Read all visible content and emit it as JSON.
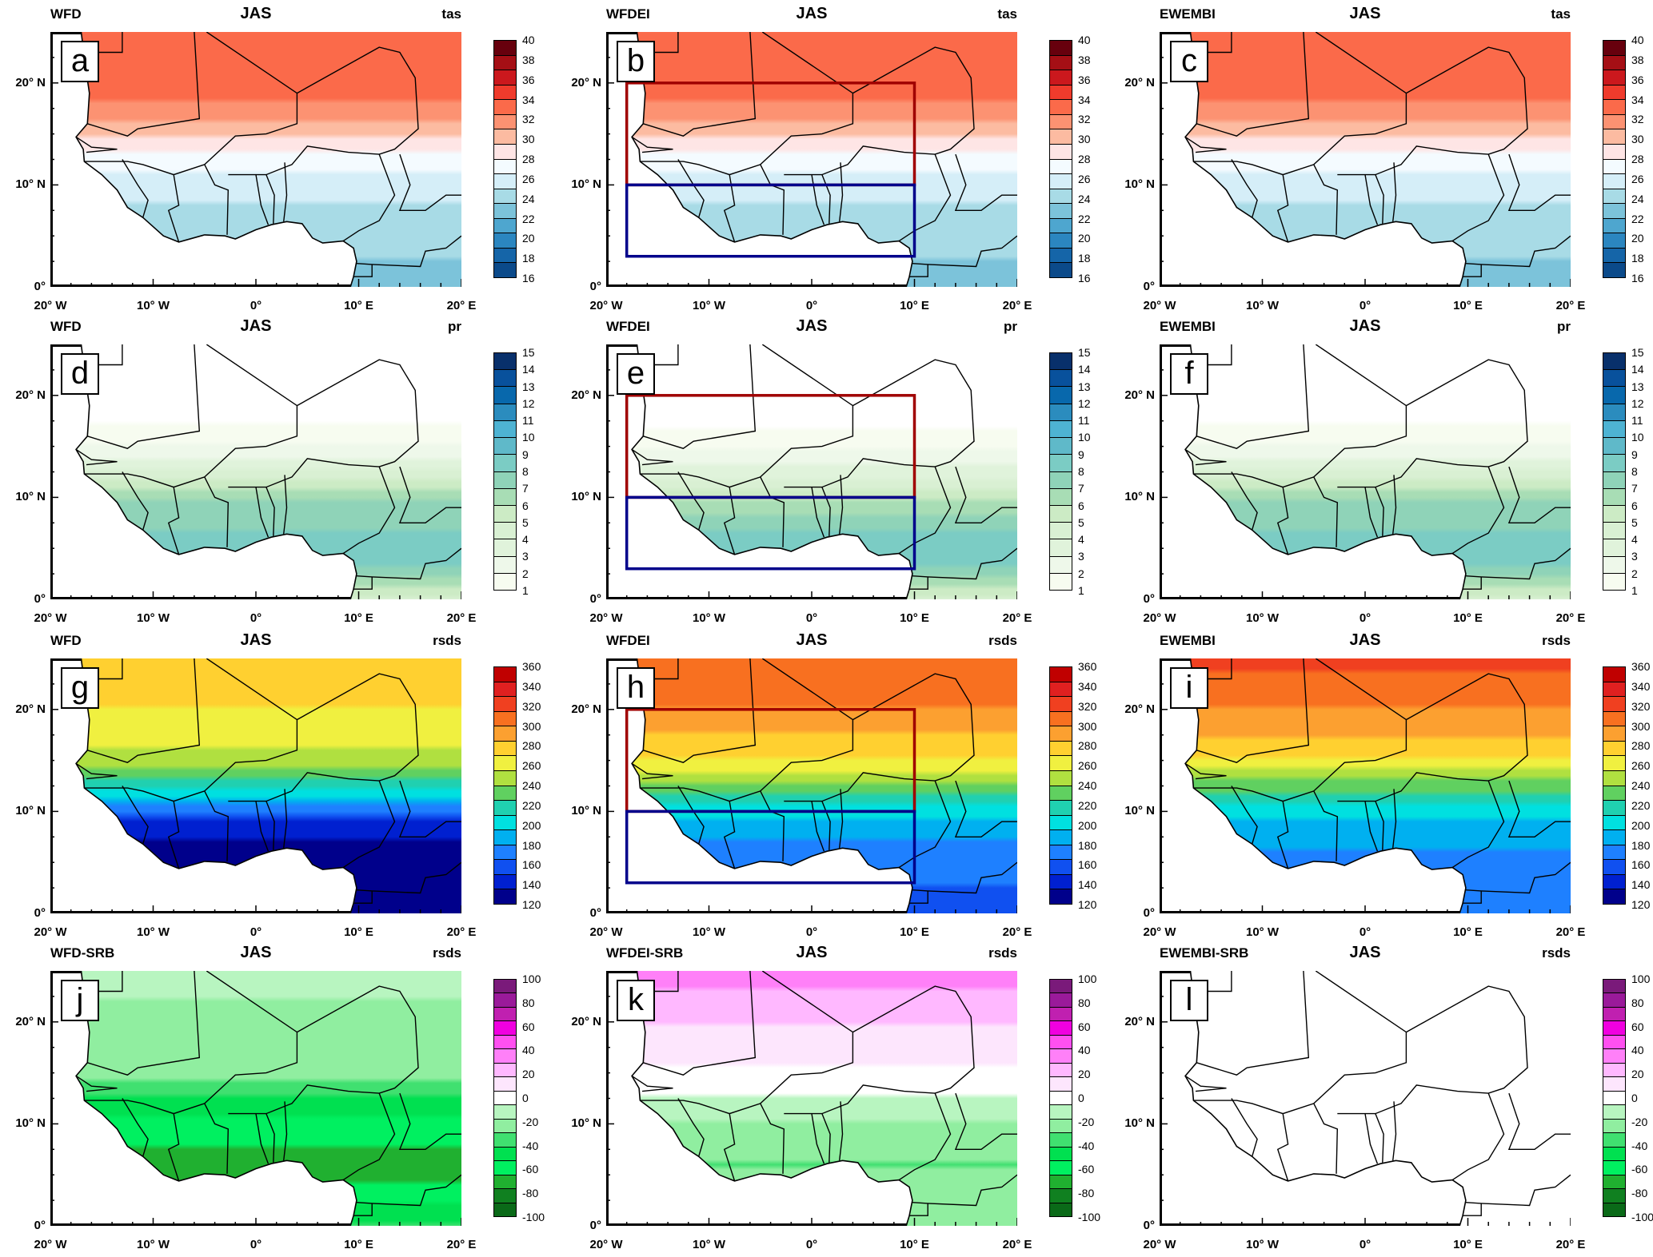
{
  "axes": {
    "lat_ticks": [
      {
        "value": 0,
        "label": "0°"
      },
      {
        "value": 10,
        "label": "10° N"
      },
      {
        "value": 20,
        "label": "20° N"
      }
    ],
    "lon_ticks": [
      {
        "value": -20,
        "label": "20° W"
      },
      {
        "value": -10,
        "label": "10° W"
      },
      {
        "value": 0,
        "label": "0°"
      },
      {
        "value": 10,
        "label": "10° E"
      },
      {
        "value": 20,
        "label": "20° E"
      }
    ],
    "lon_range": [
      -20,
      20
    ],
    "lat_range": [
      0,
      25
    ]
  },
  "colorbars": {
    "tas": {
      "labels": [
        "40",
        "38",
        "36",
        "34",
        "32",
        "30",
        "28",
        "26",
        "24",
        "22",
        "20",
        "18",
        "16"
      ],
      "colors": [
        "#67000d",
        "#a50f15",
        "#cb181d",
        "#ef3b2c",
        "#fb6a4a",
        "#fc9272",
        "#fcbba1",
        "#fee5e5",
        "#f4fbff",
        "#d5eef8",
        "#a8dbe6",
        "#7cc3da",
        "#4ea6cf",
        "#2b86c0",
        "#1565a8",
        "#0b4a8a"
      ]
    },
    "pr": {
      "labels": [
        "15",
        "14",
        "13",
        "12",
        "11",
        "10",
        "9",
        "8",
        "7",
        "6",
        "5",
        "4",
        "3",
        "2",
        "1"
      ],
      "colors": [
        "#08306b",
        "#08519c",
        "#0868ac",
        "#2b8cbe",
        "#4eb3d3",
        "#5fb9c9",
        "#7bccc4",
        "#8fd3b8",
        "#a8ddb5",
        "#ccebc5",
        "#d9f0d3",
        "#e0f3db",
        "#eef8ea",
        "#f7fcf0"
      ]
    },
    "rsds": {
      "labels": [
        "360",
        "340",
        "320",
        "300",
        "280",
        "260",
        "240",
        "220",
        "200",
        "180",
        "160",
        "140",
        "120"
      ],
      "colors": [
        "#c00000",
        "#e02020",
        "#f04020",
        "#f87020",
        "#fca030",
        "#ffd030",
        "#f0f040",
        "#b0e040",
        "#60d060",
        "#20d0b0",
        "#00e0e0",
        "#00b0f0",
        "#1e80ff",
        "#1050f0",
        "#0020d0",
        "#00008b"
      ]
    },
    "diff": {
      "labels": [
        "100",
        "80",
        "60",
        "40",
        "20",
        "0",
        "-20",
        "-40",
        "-60",
        "-80",
        "-100"
      ],
      "colors": [
        "#7a1a7a",
        "#9a1a9a",
        "#c020b0",
        "#f000e0",
        "#ff50f0",
        "#ff80f8",
        "#ffb8ff",
        "#fde6fd",
        "#ffffff",
        "#b8f5c0",
        "#90eea0",
        "#40e070",
        "#00e050",
        "#00f060",
        "#20b030",
        "#108020",
        "#0a6a18"
      ]
    }
  },
  "boxes": {
    "north": {
      "lon": [
        -18,
        10
      ],
      "lat": [
        10,
        20
      ],
      "color": "#a00000"
    },
    "south": {
      "lon": [
        -18,
        10
      ],
      "lat": [
        3,
        10
      ],
      "color": "#00008b"
    }
  },
  "panels": [
    {
      "letter": "a",
      "source": "WFD",
      "season": "JAS",
      "variable": "tas",
      "colorbar": "tas",
      "boxes": false
    },
    {
      "letter": "b",
      "source": "WFDEI",
      "season": "JAS",
      "variable": "tas",
      "colorbar": "tas",
      "boxes": true
    },
    {
      "letter": "c",
      "source": "EWEMBI",
      "season": "JAS",
      "variable": "tas",
      "colorbar": "tas",
      "boxes": false
    },
    {
      "letter": "d",
      "source": "WFD",
      "season": "JAS",
      "variable": "pr",
      "colorbar": "pr",
      "boxes": false
    },
    {
      "letter": "e",
      "source": "WFDEI",
      "season": "JAS",
      "variable": "pr",
      "colorbar": "pr",
      "boxes": true
    },
    {
      "letter": "f",
      "source": "EWEMBI",
      "season": "JAS",
      "variable": "pr",
      "colorbar": "pr",
      "boxes": false
    },
    {
      "letter": "g",
      "source": "WFD",
      "season": "JAS",
      "variable": "rsds",
      "colorbar": "rsds",
      "boxes": false
    },
    {
      "letter": "h",
      "source": "WFDEI",
      "season": "JAS",
      "variable": "rsds",
      "colorbar": "rsds",
      "boxes": true
    },
    {
      "letter": "i",
      "source": "EWEMBI",
      "season": "JAS",
      "variable": "rsds",
      "colorbar": "rsds",
      "boxes": false
    },
    {
      "letter": "j",
      "source": "WFD-SRB",
      "season": "JAS",
      "variable": "rsds",
      "colorbar": "diff",
      "boxes": false
    },
    {
      "letter": "k",
      "source": "WFDEI-SRB",
      "season": "JAS",
      "variable": "rsds",
      "colorbar": "diff",
      "boxes": false
    },
    {
      "letter": "l",
      "source": "EWEMBI-SRB",
      "season": "JAS",
      "variable": "rsds",
      "colorbar": "diff",
      "boxes": false
    }
  ]
}
